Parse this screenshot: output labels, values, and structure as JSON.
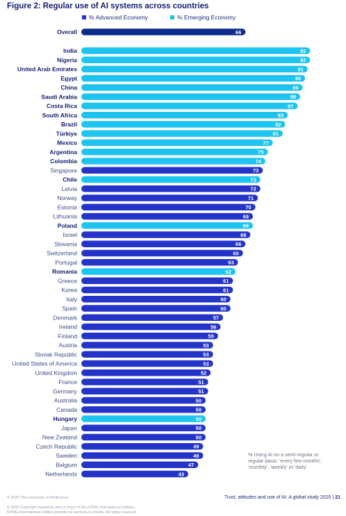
{
  "title": "Figure 2: Regular use of AI systems across countries",
  "legend": {
    "advanced": "% Advanced Economy",
    "emerging": "% Emerging Economy"
  },
  "colors": {
    "advanced": "#2534c8",
    "emerging": "#1dc4ef",
    "overall": "#0d2c8c",
    "label_dark": "#101c6e",
    "label_regular": "#3d4a8a"
  },
  "note": "% Using AI on a semi-regular or regular basis: 'every few months', 'monthly', 'weekly' or 'daily'",
  "footer": {
    "copyright_1": "© 2025 The University of Melbourne.",
    "copyright_2": "© 2025 Copyright owned by one or more of the KPMG International entities.",
    "copyright_3": "KPMG International entities provide no services to clients. All rights reserved.",
    "study": "Trust, attitudes and use of AI: A global study 2025",
    "separator": "|",
    "page": "21"
  },
  "chart_data": {
    "type": "bar",
    "orientation": "horizontal",
    "xlim": [
      0,
      100
    ],
    "overall": {
      "label": "Overall",
      "value": 66
    },
    "bars": [
      {
        "label": "India",
        "value": 92,
        "group": "emerging"
      },
      {
        "label": "Nigeria",
        "value": 92,
        "group": "emerging"
      },
      {
        "label": "United Arab Emirates",
        "value": 91,
        "group": "emerging"
      },
      {
        "label": "Egypt",
        "value": 90,
        "group": "emerging"
      },
      {
        "label": "China",
        "value": 89,
        "group": "emerging"
      },
      {
        "label": "Saudi Arabia",
        "value": 88,
        "group": "emerging"
      },
      {
        "label": "Costa Rica",
        "value": 87,
        "group": "emerging"
      },
      {
        "label": "South Africa",
        "value": 83,
        "group": "emerging"
      },
      {
        "label": "Brazil",
        "value": 82,
        "group": "emerging"
      },
      {
        "label": "Türkiye",
        "value": 81,
        "group": "emerging"
      },
      {
        "label": "Mexico",
        "value": 77,
        "group": "emerging"
      },
      {
        "label": "Argentina",
        "value": 75,
        "group": "emerging"
      },
      {
        "label": "Colombia",
        "value": 74,
        "group": "emerging"
      },
      {
        "label": "Singapore",
        "value": 73,
        "group": "advanced"
      },
      {
        "label": "Chile",
        "value": 72,
        "group": "emerging"
      },
      {
        "label": "Latvia",
        "value": 72,
        "group": "advanced"
      },
      {
        "label": "Norway",
        "value": 71,
        "group": "advanced"
      },
      {
        "label": "Estonia",
        "value": 70,
        "group": "advanced"
      },
      {
        "label": "Lithuania",
        "value": 69,
        "group": "advanced"
      },
      {
        "label": "Poland",
        "value": 69,
        "group": "emerging"
      },
      {
        "label": "Israel",
        "value": 68,
        "group": "advanced"
      },
      {
        "label": "Slovenia",
        "value": 66,
        "group": "advanced"
      },
      {
        "label": "Switzerland",
        "value": 65,
        "group": "advanced"
      },
      {
        "label": "Portugal",
        "value": 63,
        "group": "advanced"
      },
      {
        "label": "Romania",
        "value": 62,
        "group": "emerging"
      },
      {
        "label": "Greece",
        "value": 61,
        "group": "advanced"
      },
      {
        "label": "Korea",
        "value": 61,
        "group": "advanced"
      },
      {
        "label": "Italy",
        "value": 60,
        "group": "advanced"
      },
      {
        "label": "Spain",
        "value": 60,
        "group": "advanced"
      },
      {
        "label": "Denmark",
        "value": 57,
        "group": "advanced"
      },
      {
        "label": "Ireland",
        "value": 56,
        "group": "advanced"
      },
      {
        "label": "Finland",
        "value": 55,
        "group": "advanced"
      },
      {
        "label": "Austria",
        "value": 53,
        "group": "advanced"
      },
      {
        "label": "Slovak Republic",
        "value": 53,
        "group": "advanced"
      },
      {
        "label": "United States of America",
        "value": 53,
        "group": "advanced"
      },
      {
        "label": "United Kingdom",
        "value": 52,
        "group": "advanced"
      },
      {
        "label": "France",
        "value": 51,
        "group": "advanced"
      },
      {
        "label": "Germany",
        "value": 51,
        "group": "advanced"
      },
      {
        "label": "Australia",
        "value": 50,
        "group": "advanced"
      },
      {
        "label": "Canada",
        "value": 50,
        "group": "advanced"
      },
      {
        "label": "Hungary",
        "value": 50,
        "group": "emerging"
      },
      {
        "label": "Japan",
        "value": 50,
        "group": "advanced"
      },
      {
        "label": "New Zealand",
        "value": 50,
        "group": "advanced"
      },
      {
        "label": "Czech Republic",
        "value": 49,
        "group": "advanced"
      },
      {
        "label": "Sweden",
        "value": 49,
        "group": "advanced"
      },
      {
        "label": "Belgium",
        "value": 47,
        "group": "advanced"
      },
      {
        "label": "Netherlands",
        "value": 43,
        "group": "advanced"
      }
    ]
  }
}
